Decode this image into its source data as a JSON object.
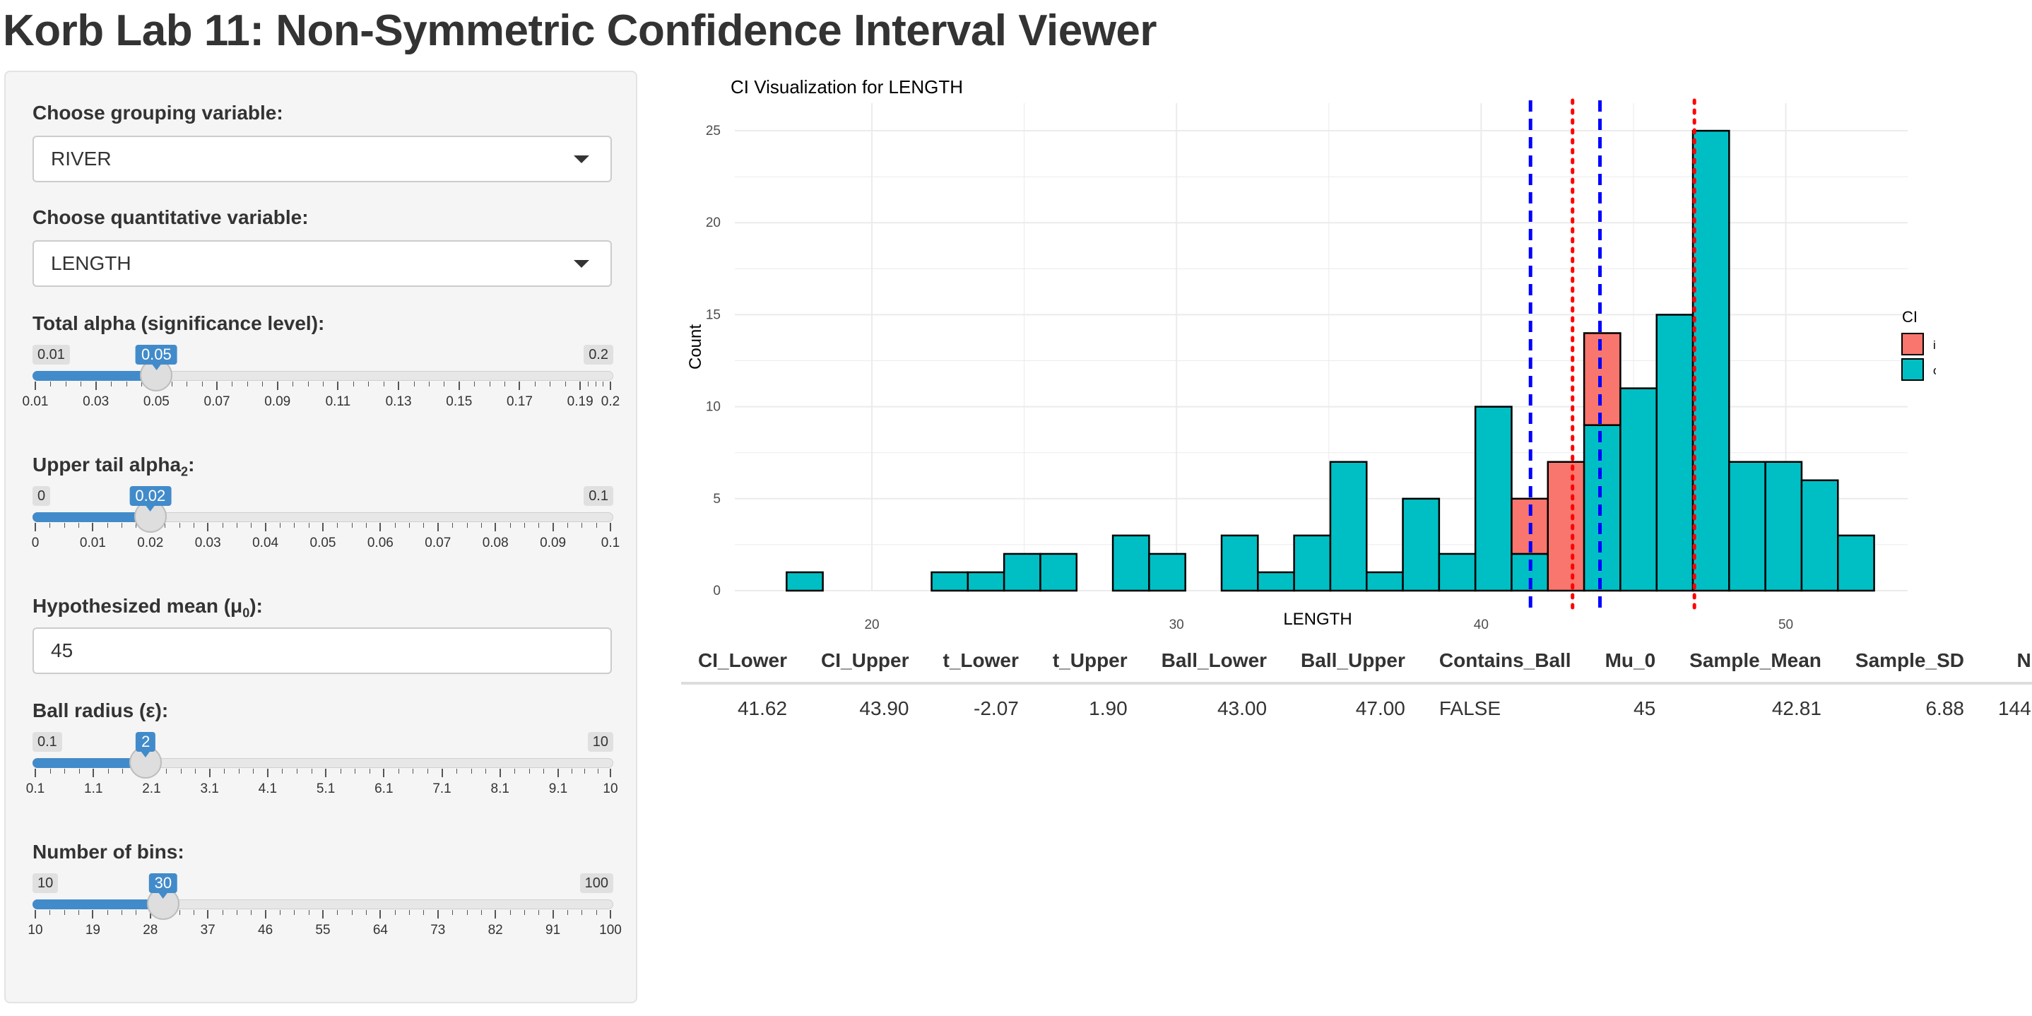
{
  "page": {
    "title": "Korb Lab 11: Non-Symmetric Confidence Interval Viewer"
  },
  "controls": {
    "grouping": {
      "label": "Choose grouping variable:",
      "value": "RIVER"
    },
    "quant": {
      "label": "Choose quantitative variable:",
      "value": "LENGTH"
    },
    "alpha": {
      "label": "Total alpha (significance level):",
      "min": 0.01,
      "max": 0.2,
      "value": 0.05,
      "min_label": "0.01",
      "max_label": "0.2",
      "value_label": "0.05",
      "ticks": [
        "0.01",
        "0.03",
        "0.05",
        "0.07",
        "0.09",
        "0.11",
        "0.13",
        "0.15",
        "0.17",
        "0.19",
        "0.2"
      ],
      "tick_values": [
        0.01,
        0.03,
        0.05,
        0.07,
        0.09,
        0.11,
        0.13,
        0.15,
        0.17,
        0.19,
        0.2
      ]
    },
    "upper_alpha": {
      "label": "Upper tail alpha",
      "label_sub": "2",
      "label_suffix": ":",
      "min": 0,
      "max": 0.1,
      "value": 0.02,
      "min_label": "0",
      "max_label": "0.1",
      "value_label": "0.02",
      "ticks": [
        "0",
        "0.01",
        "0.02",
        "0.03",
        "0.04",
        "0.05",
        "0.06",
        "0.07",
        "0.08",
        "0.09",
        "0.1"
      ],
      "tick_values": [
        0,
        0.01,
        0.02,
        0.03,
        0.04,
        0.05,
        0.06,
        0.07,
        0.08,
        0.09,
        0.1
      ]
    },
    "mu0": {
      "label": "Hypothesized mean (μ",
      "label_sub": "0",
      "label_suffix": "):",
      "value": "45"
    },
    "ball": {
      "label": "Ball radius (ε):",
      "min": 0.1,
      "max": 10,
      "value": 2,
      "min_label": "0.1",
      "max_label": "10",
      "value_label": "2",
      "ticks": [
        "0.1",
        "1.1",
        "2.1",
        "3.1",
        "4.1",
        "5.1",
        "6.1",
        "7.1",
        "8.1",
        "9.1",
        "10"
      ],
      "tick_values": [
        0.1,
        1.1,
        2.1,
        3.1,
        4.1,
        5.1,
        6.1,
        7.1,
        8.1,
        9.1,
        10
      ]
    },
    "bins": {
      "label": "Number of bins:",
      "min": 10,
      "max": 100,
      "value": 30,
      "min_label": "10",
      "max_label": "100",
      "value_label": "30",
      "ticks": [
        "10",
        "19",
        "28",
        "37",
        "46",
        "55",
        "64",
        "73",
        "82",
        "91",
        "100"
      ],
      "tick_values": [
        10,
        19,
        28,
        37,
        46,
        55,
        64,
        73,
        82,
        91,
        100
      ]
    }
  },
  "chart_data": {
    "type": "bar",
    "title": "CI Visualization for LENGTH",
    "xlabel": "LENGTH",
    "ylabel": "Count",
    "xlim": [
      15.5,
      54.0
    ],
    "ylim": [
      0,
      26.5
    ],
    "x_ticks": [
      20,
      30,
      40,
      50
    ],
    "y_ticks": [
      0,
      5,
      10,
      15,
      20,
      25
    ],
    "grid": true,
    "legend": {
      "title": "CI",
      "position": "right",
      "entries": [
        {
          "label": "in",
          "color": "#f8766d"
        },
        {
          "label": "out",
          "color": "#00bfc4"
        }
      ]
    },
    "bin_width": 1.19,
    "bin_start": 17.2,
    "series": [
      {
        "name": "out",
        "color": "#00bfc4",
        "values": [
          1,
          0,
          0,
          0,
          1,
          1,
          2,
          2,
          0,
          3,
          2,
          0,
          3,
          1,
          3,
          7,
          1,
          5,
          2,
          10,
          2,
          0,
          9,
          11,
          15,
          25,
          7,
          7,
          6,
          3
        ]
      },
      {
        "name": "in",
        "color": "#f8766d",
        "values": [
          0,
          0,
          0,
          0,
          0,
          0,
          0,
          0,
          0,
          0,
          0,
          0,
          0,
          0,
          0,
          0,
          0,
          0,
          0,
          0,
          3,
          7,
          5,
          0,
          0,
          0,
          0,
          0,
          0,
          0
        ]
      }
    ],
    "reference_lines": [
      {
        "x": 41.62,
        "color": "#0000ff",
        "style": "dashed"
      },
      {
        "x": 43.9,
        "color": "#0000ff",
        "style": "dashed"
      },
      {
        "x": 43.0,
        "color": "#ff0000",
        "style": "dotted"
      },
      {
        "x": 47.0,
        "color": "#ff0000",
        "style": "dotted"
      }
    ]
  },
  "results": {
    "headers": [
      "CI_Lower",
      "CI_Upper",
      "t_Lower",
      "t_Upper",
      "Ball_Lower",
      "Ball_Upper",
      "Contains_Ball",
      "Mu_0",
      "Sample_Mean",
      "Sample_SD",
      "N"
    ],
    "row": [
      "41.62",
      "43.90",
      "-2.07",
      "1.90",
      "43.00",
      "47.00",
      "FALSE",
      "45",
      "42.81",
      "6.88",
      "144"
    ]
  }
}
